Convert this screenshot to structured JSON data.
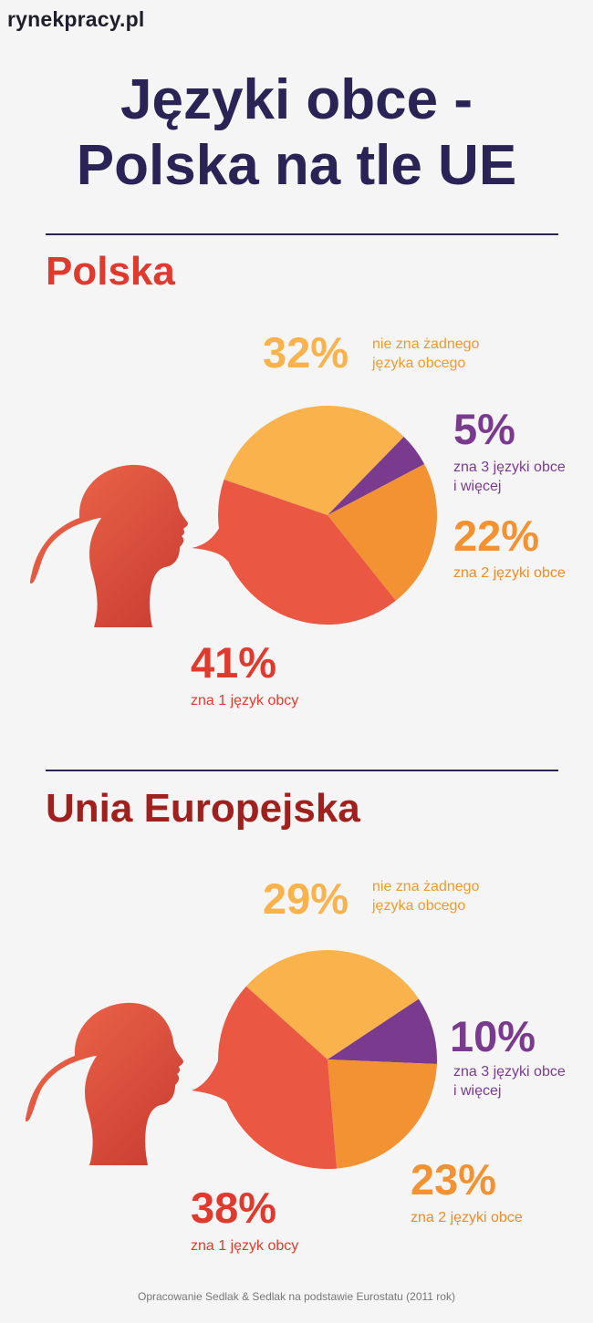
{
  "brand": "rynekpracy.pl",
  "title_line1": "Języki obce -",
  "title_line2": "Polska na tle UE",
  "footer": "Opracowanie Sedlak & Sedlak na podstawie Eurostatu (2011 rok)",
  "colors": {
    "title": "#2a2456",
    "polska_heading": "#e03a2f",
    "ue_heading": "#a0201e",
    "none": "#f9b24c",
    "three_plus": "#7a3b8f",
    "two": "#f39232",
    "one": "#ea5743",
    "head_light": "#ef6a4a",
    "head_dark": "#c83a32"
  },
  "chart_data": [
    {
      "type": "pie",
      "title": "Polska",
      "categories": [
        "nie zna żadnego języka obcego",
        "zna 3 języki obce i więcej",
        "zna 2 języki obce",
        "zna 1 język obcy"
      ],
      "values": [
        32,
        5,
        22,
        41
      ],
      "labels": [
        "32%",
        "5%",
        "22%",
        "41%"
      ]
    },
    {
      "type": "pie",
      "title": "Unia Europejska",
      "categories": [
        "nie zna żadnego języka obcego",
        "zna 3 języki obce i więcej",
        "zna 2 języki obce",
        "zna 1 język obcy"
      ],
      "values": [
        29,
        10,
        23,
        38
      ],
      "labels": [
        "29%",
        "10%",
        "23%",
        "38%"
      ]
    }
  ],
  "polska": {
    "heading": "Polska",
    "none": {
      "pct": "32%",
      "line1": "nie zna żadnego",
      "line2": "języka obcego"
    },
    "three": {
      "pct": "5%",
      "line1": "zna 3 języki obce",
      "line2": "i więcej"
    },
    "two": {
      "pct": "22%",
      "line1": "zna 2 języki obce"
    },
    "one": {
      "pct": "41%",
      "line1": "zna 1 język obcy"
    }
  },
  "ue": {
    "heading": "Unia Europejska",
    "none": {
      "pct": "29%",
      "line1": "nie zna żadnego",
      "line2": "języka obcego"
    },
    "three": {
      "pct": "10%",
      "line1": "zna 3 języki obce",
      "line2": "i więcej"
    },
    "two": {
      "pct": "23%",
      "line1": "zna 2 języki obce"
    },
    "one": {
      "pct": "38%",
      "line1": "zna 1 język obcy"
    }
  }
}
